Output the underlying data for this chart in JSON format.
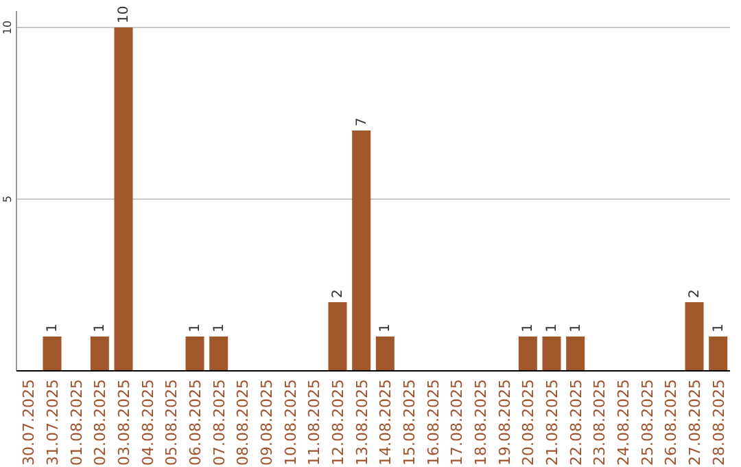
{
  "chart_data": {
    "type": "bar",
    "categories": [
      "30.07.2025",
      "31.07.2025",
      "01.08.2025",
      "02.08.2025",
      "03.08.2025",
      "04.08.2025",
      "05.08.2025",
      "06.08.2025",
      "07.08.2025",
      "08.08.2025",
      "09.08.2025",
      "10.08.2025",
      "11.08.2025",
      "12.08.2025",
      "13.08.2025",
      "14.08.2025",
      "15.08.2025",
      "16.08.2025",
      "17.08.2025",
      "18.08.2025",
      "19.08.2025",
      "20.08.2025",
      "21.08.2025",
      "22.08.2025",
      "23.08.2025",
      "24.08.2025",
      "25.08.2025",
      "26.08.2025",
      "27.08.2025",
      "28.08.2025"
    ],
    "values": [
      0,
      1,
      0,
      1,
      10,
      0,
      0,
      1,
      1,
      0,
      0,
      0,
      0,
      2,
      7,
      1,
      0,
      0,
      0,
      0,
      0,
      1,
      1,
      1,
      0,
      0,
      0,
      0,
      2,
      1
    ],
    "value_labels": [
      null,
      "1",
      null,
      "1",
      "10",
      null,
      null,
      "1",
      "1",
      null,
      null,
      null,
      null,
      "2",
      "7",
      "1",
      null,
      null,
      null,
      null,
      null,
      "1",
      "1",
      "1",
      null,
      null,
      null,
      null,
      "2",
      "1"
    ],
    "color": "#a0572a",
    "ylim": [
      0,
      10
    ],
    "yticks": [
      5,
      10
    ],
    "grid": "y"
  }
}
